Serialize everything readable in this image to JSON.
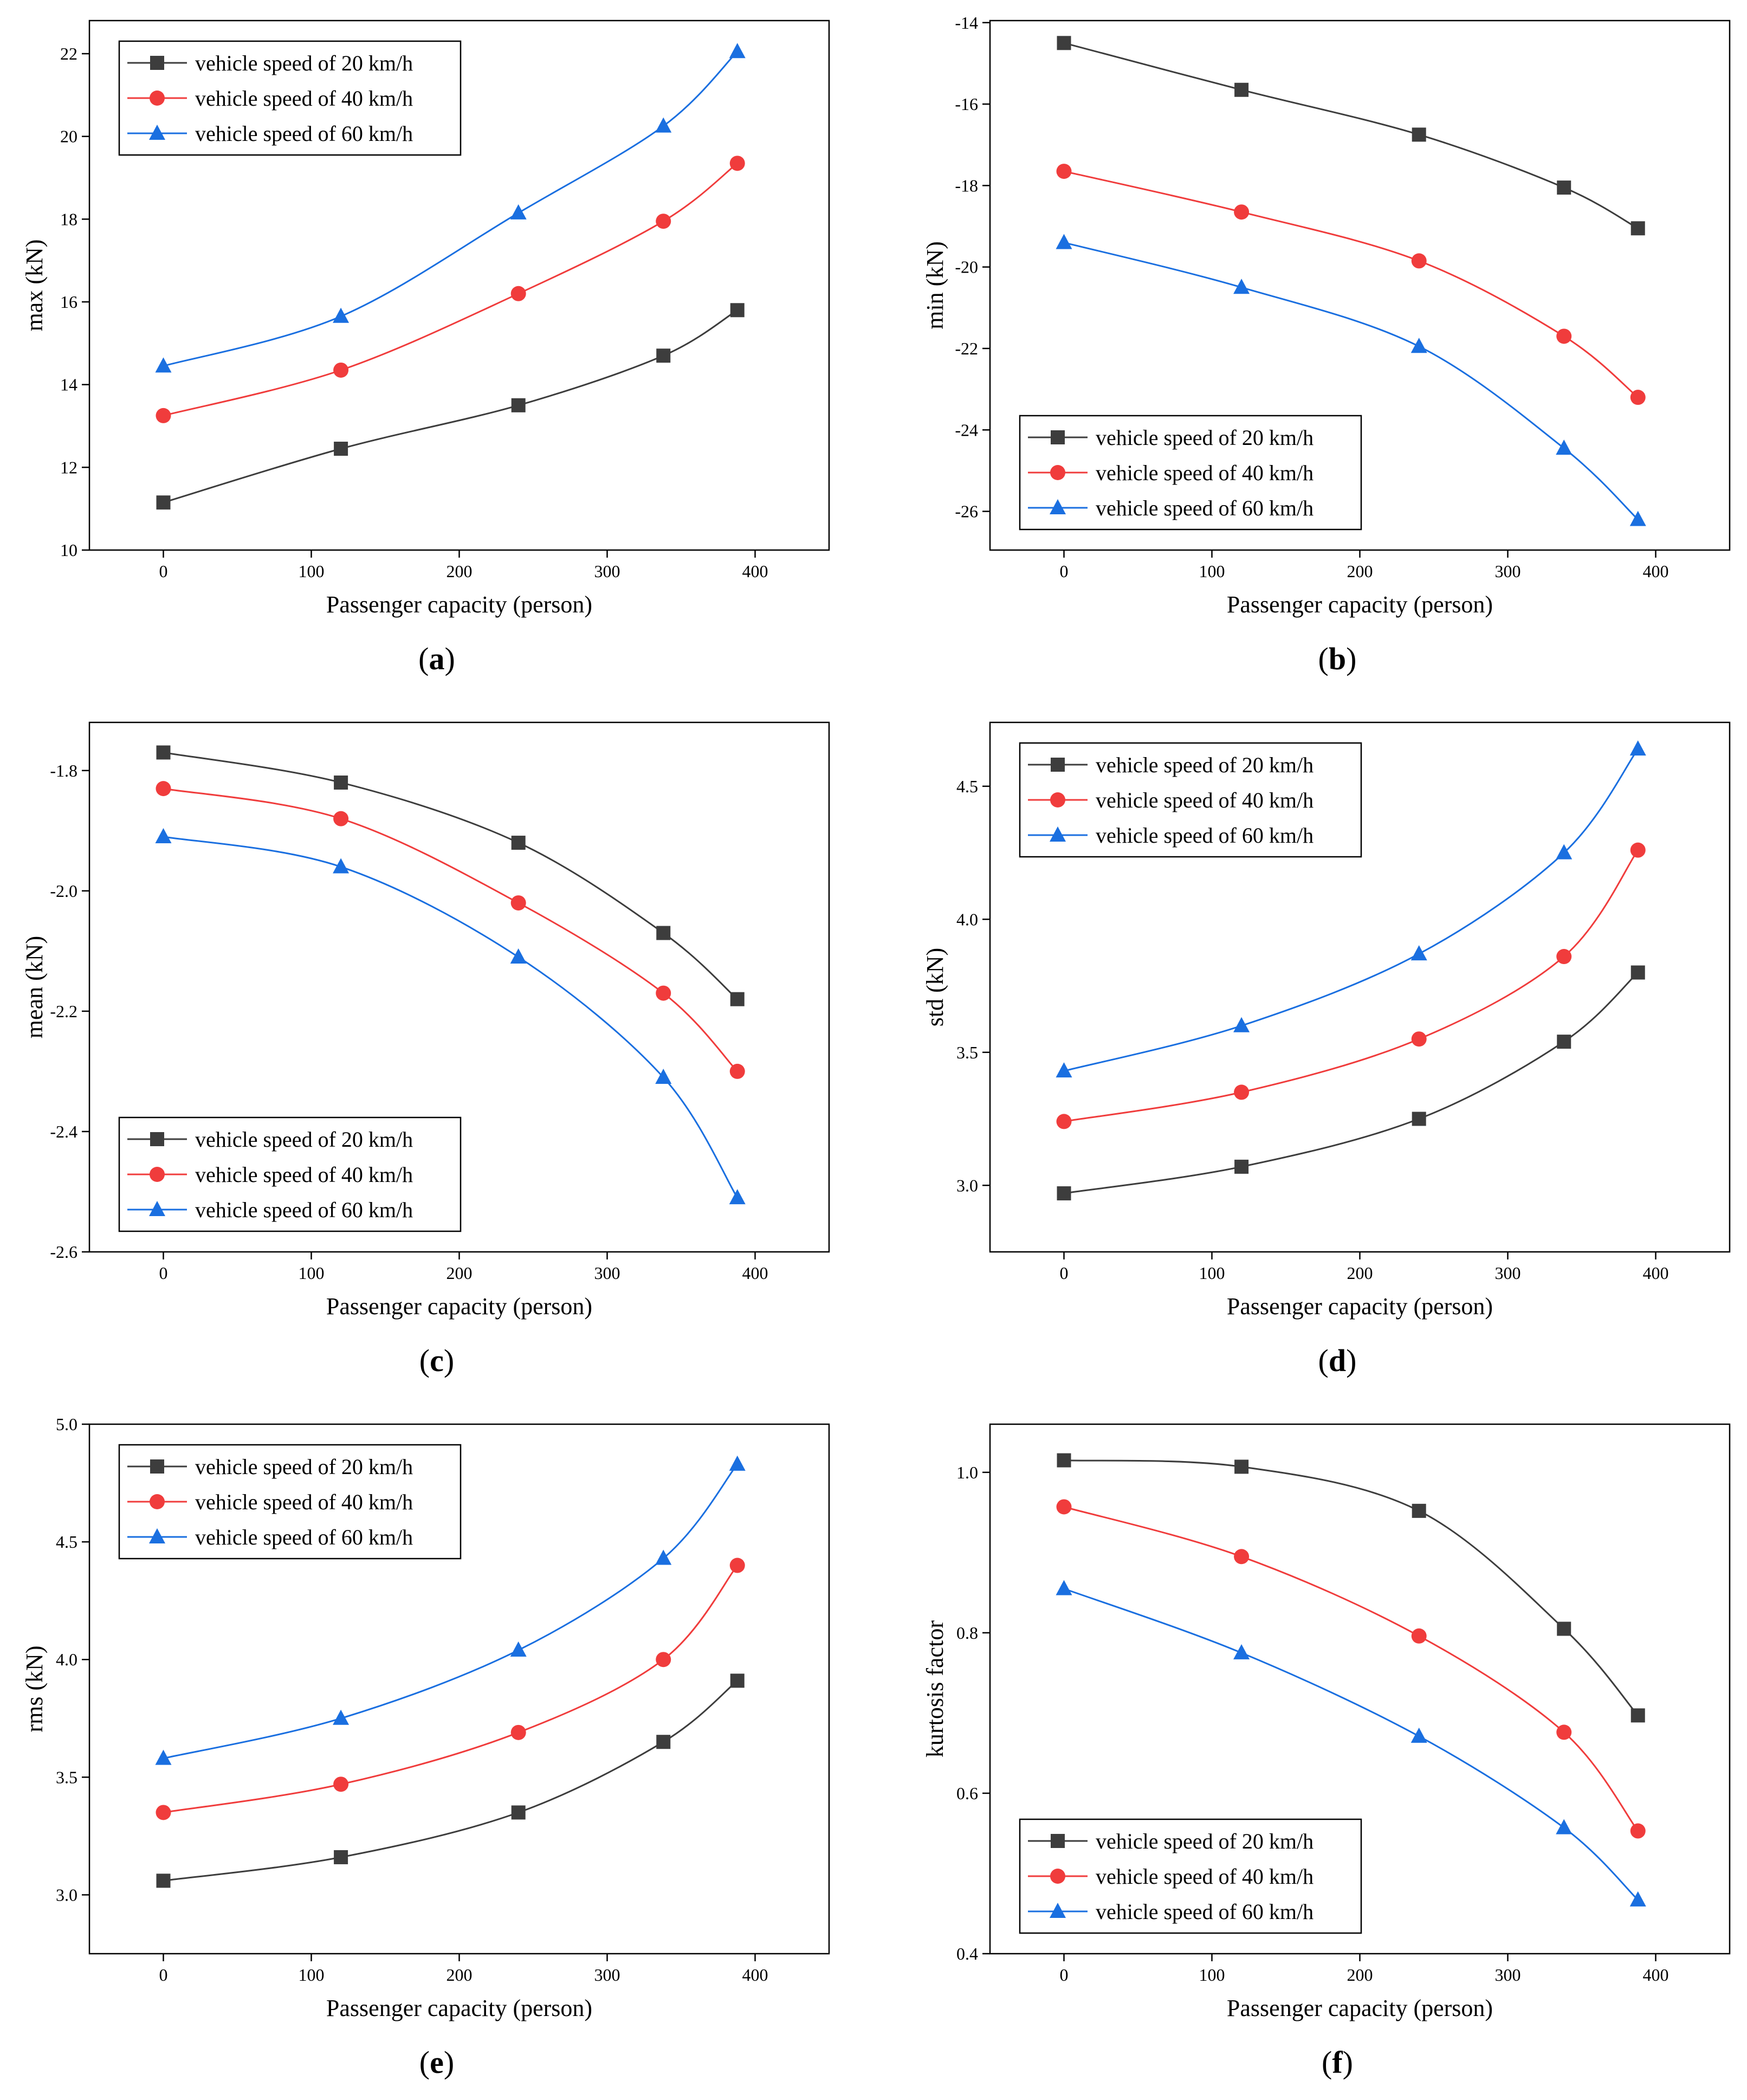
{
  "chart_data": [
    {
      "id": "a",
      "type": "line",
      "caption_letter": "a",
      "xlabel": "Passenger capacity (person)",
      "ylabel": "max (kN)",
      "x": [
        0,
        120,
        240,
        338,
        388
      ],
      "xlim": [
        -50,
        450
      ],
      "xticks": [
        0,
        100,
        200,
        300,
        400
      ],
      "ylim": [
        10,
        22.8
      ],
      "yticks": [
        10,
        12,
        14,
        16,
        18,
        20,
        22
      ],
      "ytick_decimals": 0,
      "legend_position": "top-left",
      "series": [
        {
          "name": "vehicle speed of 20 km/h",
          "marker": "square",
          "color": "#3d3d3d",
          "values": [
            11.15,
            12.45,
            13.5,
            14.7,
            15.8
          ]
        },
        {
          "name": "vehicle speed of 40 km/h",
          "marker": "circle",
          "color": "#f03c3c",
          "values": [
            13.25,
            14.35,
            16.2,
            17.95,
            19.35
          ]
        },
        {
          "name": "vehicle speed of 60 km/h",
          "marker": "triangle",
          "color": "#1a6fe0",
          "values": [
            14.45,
            15.65,
            18.15,
            20.25,
            22.05
          ]
        }
      ]
    },
    {
      "id": "b",
      "type": "line",
      "caption_letter": "b",
      "xlabel": "Passenger capacity (person)",
      "ylabel": "min (kN)",
      "x": [
        0,
        120,
        240,
        338,
        388
      ],
      "xlim": [
        -50,
        450
      ],
      "xticks": [
        0,
        100,
        200,
        300,
        400
      ],
      "ylim": [
        -26.95,
        -13.95
      ],
      "yticks": [
        -26,
        -24,
        -22,
        -20,
        -18,
        -16,
        -14
      ],
      "ytick_decimals": 0,
      "legend_position": "bottom-left",
      "series": [
        {
          "name": "vehicle speed of 20 km/h",
          "marker": "square",
          "color": "#3d3d3d",
          "values": [
            -14.5,
            -15.65,
            -16.75,
            -18.05,
            -19.05
          ]
        },
        {
          "name": "vehicle speed of 40 km/h",
          "marker": "circle",
          "color": "#f03c3c",
          "values": [
            -17.65,
            -18.65,
            -19.85,
            -21.7,
            -23.2
          ]
        },
        {
          "name": "vehicle speed of 60 km/h",
          "marker": "triangle",
          "color": "#1a6fe0",
          "values": [
            -19.4,
            -20.5,
            -21.95,
            -24.45,
            -26.2
          ]
        }
      ]
    },
    {
      "id": "c",
      "type": "line",
      "caption_letter": "c",
      "xlabel": "Passenger capacity (person)",
      "ylabel": "mean (kN)",
      "x": [
        0,
        120,
        240,
        338,
        388
      ],
      "xlim": [
        -50,
        450
      ],
      "xticks": [
        0,
        100,
        200,
        300,
        400
      ],
      "ylim": [
        -2.6,
        -1.72
      ],
      "yticks": [
        -2.6,
        -2.4,
        -2.2,
        -2.0,
        -1.8
      ],
      "ytick_decimals": 1,
      "legend_position": "bottom-left",
      "series": [
        {
          "name": "vehicle speed of 20 km/h",
          "marker": "square",
          "color": "#3d3d3d",
          "values": [
            -1.77,
            -1.82,
            -1.92,
            -2.07,
            -2.18
          ]
        },
        {
          "name": "vehicle speed of 40 km/h",
          "marker": "circle",
          "color": "#f03c3c",
          "values": [
            -1.83,
            -1.88,
            -2.02,
            -2.17,
            -2.3
          ]
        },
        {
          "name": "vehicle speed of 60 km/h",
          "marker": "triangle",
          "color": "#1a6fe0",
          "values": [
            -1.91,
            -1.96,
            -2.11,
            -2.31,
            -2.51
          ]
        }
      ]
    },
    {
      "id": "d",
      "type": "line",
      "caption_letter": "d",
      "xlabel": "Passenger capacity (person)",
      "ylabel": "std (kN)",
      "x": [
        0,
        120,
        240,
        338,
        388
      ],
      "xlim": [
        -50,
        450
      ],
      "xticks": [
        0,
        100,
        200,
        300,
        400
      ],
      "ylim": [
        2.75,
        4.74
      ],
      "yticks": [
        3.0,
        3.5,
        4.0,
        4.5
      ],
      "ytick_decimals": 1,
      "legend_position": "top-left",
      "series": [
        {
          "name": "vehicle speed of 20 km/h",
          "marker": "square",
          "color": "#3d3d3d",
          "values": [
            2.97,
            3.07,
            3.25,
            3.54,
            3.8
          ]
        },
        {
          "name": "vehicle speed of 40 km/h",
          "marker": "circle",
          "color": "#f03c3c",
          "values": [
            3.24,
            3.35,
            3.55,
            3.86,
            4.26
          ]
        },
        {
          "name": "vehicle speed of 60 km/h",
          "marker": "triangle",
          "color": "#1a6fe0",
          "values": [
            3.43,
            3.6,
            3.87,
            4.25,
            4.64
          ]
        }
      ]
    },
    {
      "id": "e",
      "type": "line",
      "caption_letter": "e",
      "xlabel": "Passenger capacity (person)",
      "ylabel": "rms (kN)",
      "x": [
        0,
        120,
        240,
        338,
        388
      ],
      "xlim": [
        -50,
        450
      ],
      "xticks": [
        0,
        100,
        200,
        300,
        400
      ],
      "ylim": [
        2.75,
        5.0
      ],
      "yticks": [
        3.0,
        3.5,
        4.0,
        4.5,
        5.0
      ],
      "ytick_decimals": 1,
      "legend_position": "top-left",
      "series": [
        {
          "name": "vehicle speed of 20 km/h",
          "marker": "square",
          "color": "#3d3d3d",
          "values": [
            3.06,
            3.16,
            3.35,
            3.65,
            3.91
          ]
        },
        {
          "name": "vehicle speed of 40 km/h",
          "marker": "circle",
          "color": "#f03c3c",
          "values": [
            3.35,
            3.47,
            3.69,
            4.0,
            4.4
          ]
        },
        {
          "name": "vehicle speed of 60 km/h",
          "marker": "triangle",
          "color": "#1a6fe0",
          "values": [
            3.58,
            3.75,
            4.04,
            4.43,
            4.83
          ]
        }
      ]
    },
    {
      "id": "f",
      "type": "line",
      "caption_letter": "f",
      "xlabel": "Passenger capacity (person)",
      "ylabel": "kurtosis factor",
      "x": [
        0,
        120,
        240,
        338,
        388
      ],
      "xlim": [
        -50,
        450
      ],
      "xticks": [
        0,
        100,
        200,
        300,
        400
      ],
      "ylim": [
        0.4,
        1.06
      ],
      "yticks": [
        0.4,
        0.6,
        0.8,
        1.0
      ],
      "ytick_decimals": 1,
      "legend_position": "bottom-left",
      "series": [
        {
          "name": "vehicle speed of 20 km/h",
          "marker": "square",
          "color": "#3d3d3d",
          "values": [
            1.015,
            1.007,
            0.952,
            0.805,
            0.697
          ]
        },
        {
          "name": "vehicle speed of 40 km/h",
          "marker": "circle",
          "color": "#f03c3c",
          "values": [
            0.957,
            0.895,
            0.796,
            0.676,
            0.553
          ]
        },
        {
          "name": "vehicle speed of 60 km/h",
          "marker": "triangle",
          "color": "#1a6fe0",
          "values": [
            0.855,
            0.775,
            0.671,
            0.557,
            0.467
          ]
        }
      ]
    }
  ]
}
